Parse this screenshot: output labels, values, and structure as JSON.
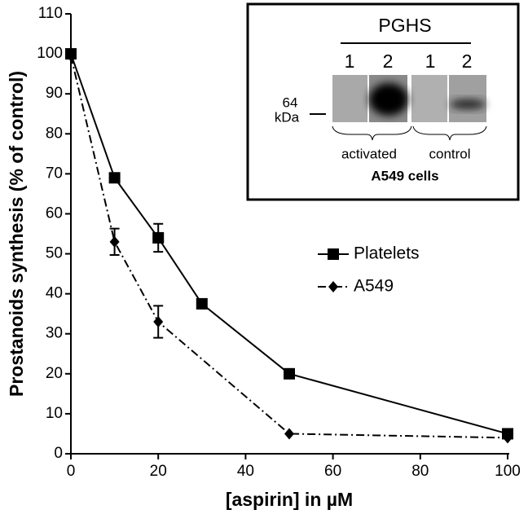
{
  "chart_data": {
    "type": "line",
    "x_label": "[aspirin] in µM",
    "y_label": "Prostanoids synthesis (% of control)",
    "xlim": [
      0,
      100
    ],
    "xticks": [
      0,
      20,
      40,
      60,
      80,
      100
    ],
    "ylim": [
      0,
      110
    ],
    "yticks": [
      0,
      10,
      20,
      30,
      40,
      50,
      60,
      70,
      80,
      90,
      100,
      110
    ],
    "legend": "center right",
    "series": [
      {
        "name": "Platelets",
        "color": "#000000",
        "marker": "square",
        "line_style": "solid",
        "x": [
          0,
          10,
          20,
          30,
          50,
          100
        ],
        "values": [
          100,
          69,
          54,
          37.5,
          20,
          5
        ],
        "errors": [
          null,
          null,
          3.5,
          null,
          null,
          null
        ]
      },
      {
        "name": "A549",
        "color": "#000000",
        "marker": "diamond",
        "line_style": "dashdot",
        "x": [
          0,
          10,
          20,
          50,
          100
        ],
        "values": [
          99.5,
          53,
          33,
          5,
          4
        ],
        "errors": [
          null,
          3.3,
          4,
          null,
          null
        ]
      }
    ]
  },
  "inset": {
    "title": "PGHS",
    "lanes": [
      "1",
      "2",
      "1",
      "2"
    ],
    "marker_value": "64",
    "marker_unit": "kDa",
    "groups": [
      "activated",
      "control"
    ],
    "caption": "A549 cells"
  }
}
